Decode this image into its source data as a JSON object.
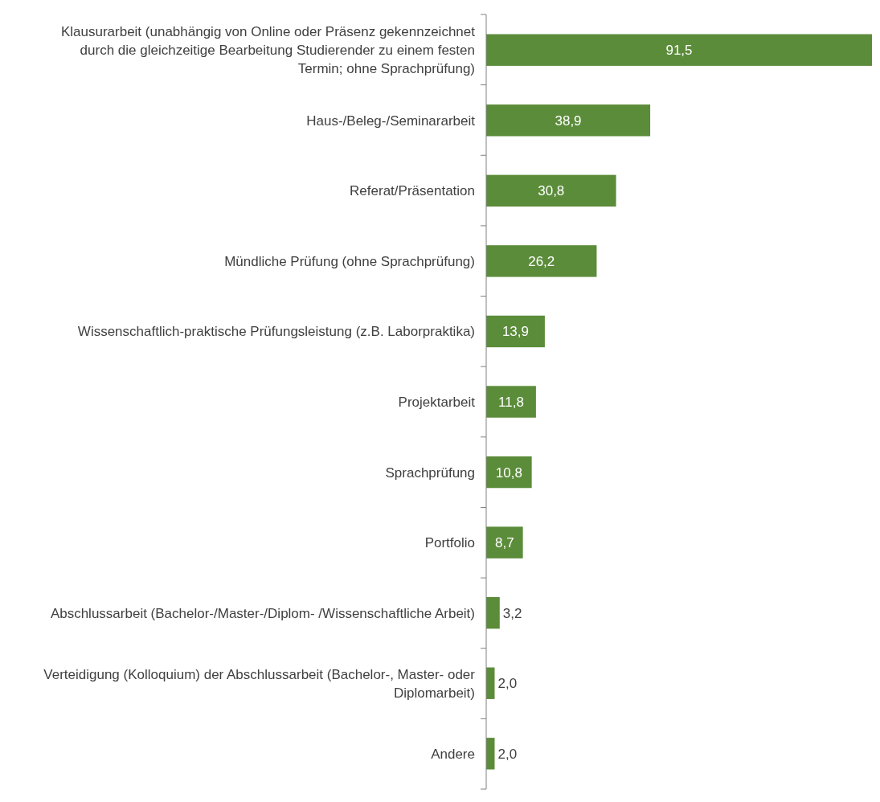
{
  "chart_data": {
    "type": "bar",
    "orientation": "horizontal",
    "categories": [
      "Klausurarbeit (unabhängig von Online oder Präsenz gekennzeichnet durch die gleichzeitige Bearbeitung Studierender zu einem festen Termin; ohne Sprachprüfung)",
      "Haus-/Beleg-/Seminararbeit",
      "Referat/Präsentation",
      "Mündliche Prüfung (ohne Sprachprüfung)",
      "Wissenschaftlich-praktische Prüfungsleistung (z.B. Laborpraktika)",
      "Projektarbeit",
      "Sprachprüfung",
      "Portfolio",
      "Abschlussarbeit (Bachelor-/Master-/Diplom- /Wissenschaftliche Arbeit)",
      "Verteidigung (Kolloquium) der Abschlussarbeit (Bachelor-, Master- oder Diplomarbeit)",
      "Andere"
    ],
    "values": [
      91.5,
      38.9,
      30.8,
      26.2,
      13.9,
      11.8,
      10.8,
      8.7,
      3.2,
      2.0,
      2.0
    ],
    "value_labels": [
      "91,5",
      "38,9",
      "30,8",
      "26,2",
      "13,9",
      "11,8",
      "10,8",
      "8,7",
      "3,2",
      "2,0",
      "2,0"
    ],
    "color": "#5b8c3a"
  }
}
